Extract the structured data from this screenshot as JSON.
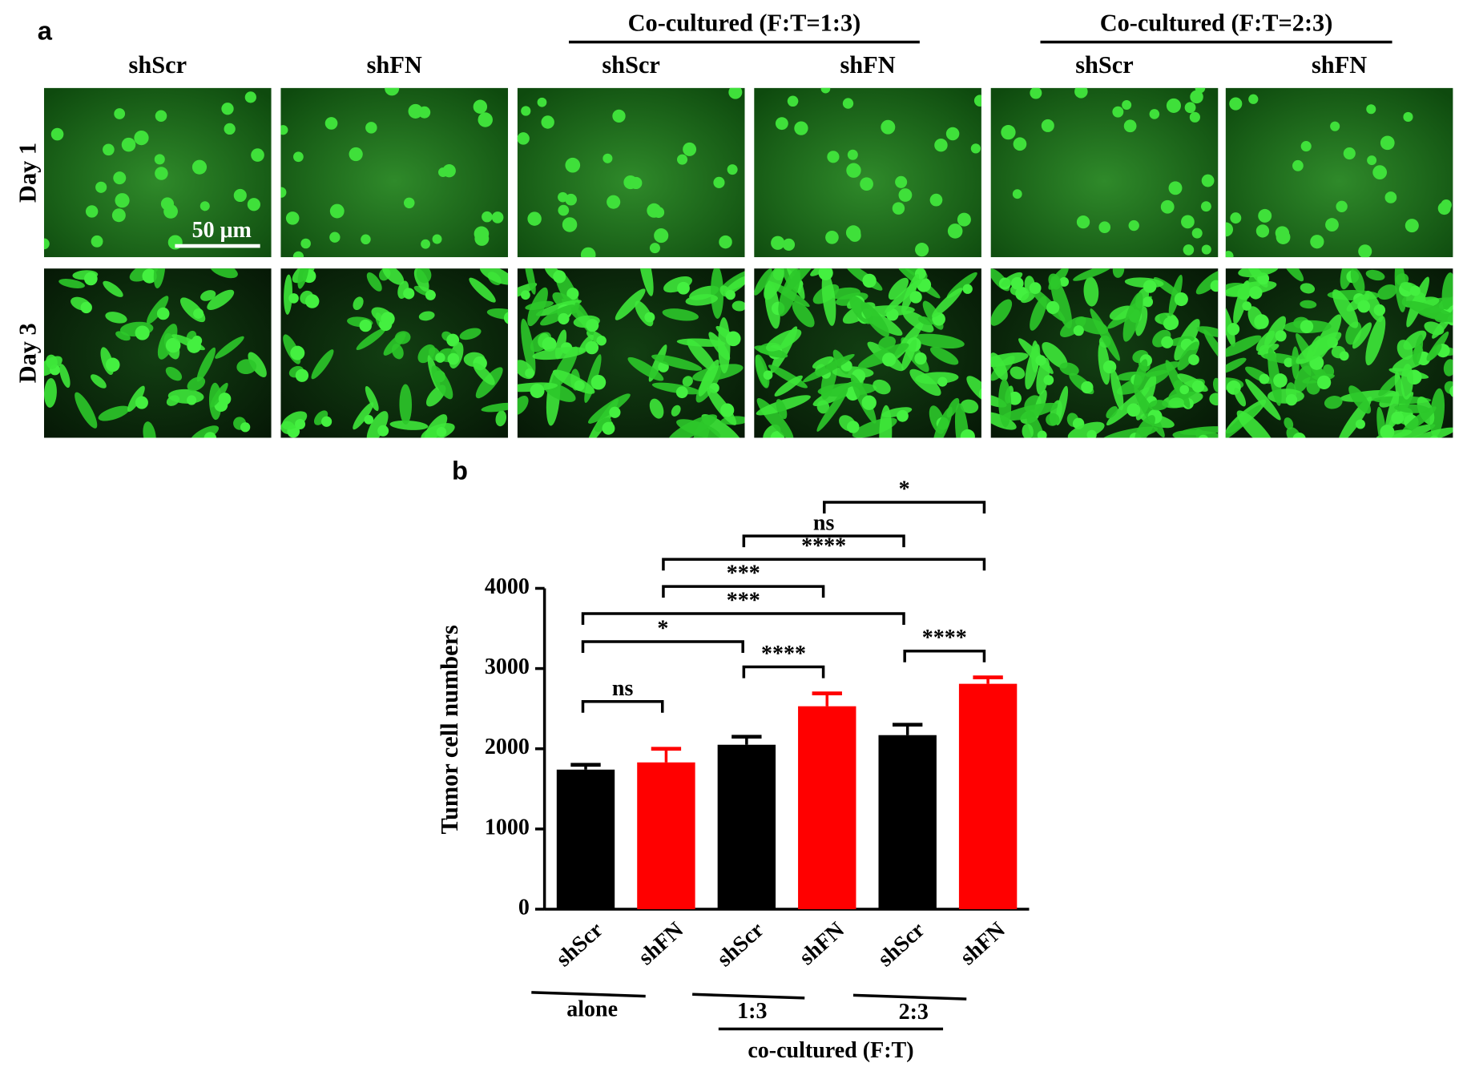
{
  "panel_a": {
    "label": "a",
    "groups": [
      "Co-cultured (F:T=1:3)",
      "Co-cultured (F:T=2:3)"
    ],
    "columns": [
      "shScr",
      "shFN",
      "shScr",
      "shFN",
      "shScr",
      "shFN"
    ],
    "rows": [
      "Day 1",
      "Day 3"
    ],
    "scale_bar": "50 μm"
  },
  "chart_data": {
    "type": "bar",
    "panel_label": "b",
    "y_label": "Tumor cell numbers",
    "categories": [
      "shScr",
      "shFN",
      "shScr",
      "shFN",
      "shScr",
      "shFN"
    ],
    "values": [
      1740,
      1830,
      2050,
      2530,
      2170,
      2810
    ],
    "errors": [
      60,
      170,
      100,
      160,
      130,
      80
    ],
    "colors": [
      "#000000",
      "#ff0000",
      "#000000",
      "#ff0000",
      "#000000",
      "#ff0000"
    ],
    "ylim": [
      0,
      4000
    ],
    "yticks": [
      0,
      1000,
      2000,
      3000,
      4000
    ],
    "groups": [
      "alone",
      "1:3",
      "2:3"
    ],
    "group_caption": "co-cultured (F:T)",
    "significance": [
      "ns",
      "*",
      "****",
      "***",
      "****",
      "***",
      "****",
      "ns",
      "*"
    ]
  }
}
